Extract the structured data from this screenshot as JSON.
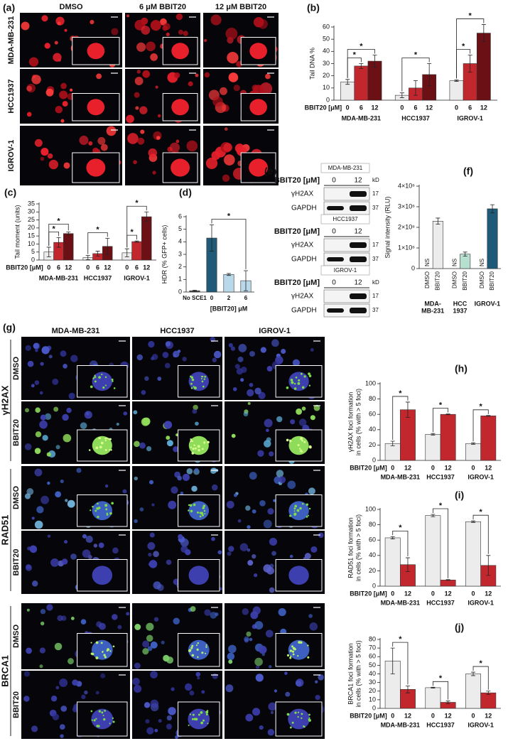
{
  "panel_a": {
    "letter": "(a)",
    "columns": [
      "DMSO",
      "6 μM BBIT20",
      "12 μM BBIT20"
    ],
    "rows": [
      "MDA-MB-231",
      "HCC1937",
      "IGROV-1"
    ]
  },
  "panel_e": {
    "letter": "(e)",
    "blots": [
      {
        "cell_line": "MDA-MB-231",
        "dose_label": "BBIT20 [μM]",
        "doses": [
          "0",
          "12"
        ],
        "unit": "kD",
        "rows": [
          {
            "name": "γH2AX",
            "kd": "17"
          },
          {
            "name": "GAPDH",
            "kd": "37"
          }
        ]
      },
      {
        "cell_line": "HCC1937",
        "dose_label": "BBIT20 [μM]",
        "doses": [
          "0",
          "12"
        ],
        "rows": [
          {
            "name": "γH2AX",
            "kd": "17"
          },
          {
            "name": "GAPDH",
            "kd": "37"
          }
        ]
      },
      {
        "cell_line": "IGROV-1",
        "dose_label": "BBIT20 [μM]",
        "doses": [
          "0",
          "12"
        ],
        "unit": "kD",
        "rows": [
          {
            "name": "γH2AX",
            "kd": "17"
          },
          {
            "name": "GAPDH",
            "kd": "37"
          }
        ]
      }
    ]
  },
  "panel_g": {
    "letter": "(g)",
    "columns": [
      "MDA-MB-231",
      "HCC1937",
      "IGROV-1"
    ],
    "groups": [
      {
        "name": "γH2AX",
        "rows": [
          "DMSO",
          "BBIT20"
        ]
      },
      {
        "name": "RAD51",
        "rows": [
          "DMSO",
          "BBIT20"
        ]
      },
      {
        "name": "BRCA1",
        "rows": [
          "DMSO",
          "BBIT20"
        ]
      }
    ]
  },
  "chart_data": [
    {
      "type": "bar",
      "letter": "(b)",
      "ylabel": "Tail DNA %",
      "xlabel": "BBIT20 [μM]",
      "categories": [
        "MDA-MB-231",
        "HCC1937",
        "IGROV-1"
      ],
      "series": [
        {
          "name": "0",
          "color": "#ececec",
          "values": [
            15,
            4,
            16
          ],
          "errors": [
            2,
            2,
            0.6
          ]
        },
        {
          "name": "6",
          "color": "#c1272d",
          "values": [
            28,
            10,
            30
          ],
          "errors": [
            2,
            6,
            7
          ]
        },
        {
          "name": "12",
          "color": "#6b1116",
          "values": [
            32,
            21,
            55
          ],
          "errors": [
            5,
            9,
            7
          ]
        }
      ],
      "ylim": [
        0,
        60
      ],
      "yticks": [
        0,
        10,
        20,
        30,
        40,
        50,
        60
      ],
      "comparisons": [
        {
          "group": 0,
          "from": 0,
          "to": 1,
          "label": "*"
        },
        {
          "group": 0,
          "from": 0,
          "to": 2,
          "label": "*"
        },
        {
          "group": 1,
          "from": 0,
          "to": 2,
          "label": "*"
        },
        {
          "group": 2,
          "from": 0,
          "to": 1,
          "label": "*"
        },
        {
          "group": 2,
          "from": 0,
          "to": 2,
          "label": "*"
        }
      ]
    },
    {
      "type": "bar",
      "letter": "(c)",
      "ylabel": "Tail moment (units)",
      "xlabel": "BBIT20 [μM]",
      "categories": [
        "MDA-MB-231",
        "HCC1937",
        "IGROV-1"
      ],
      "series": [
        {
          "name": "0",
          "color": "#ececec",
          "values": [
            5,
            1.5,
            4.5
          ],
          "errors": [
            3,
            1.3,
            2.5
          ]
        },
        {
          "name": "6",
          "color": "#c1272d",
          "values": [
            11,
            4,
            11.5
          ],
          "errors": [
            3,
            1.5,
            0.4
          ]
        },
        {
          "name": "12",
          "color": "#6b1116",
          "values": [
            16.5,
            8.5,
            27
          ],
          "errors": [
            1,
            5,
            3
          ]
        }
      ],
      "ylim": [
        0,
        35
      ],
      "yticks": [
        0,
        5,
        10,
        15,
        20,
        25,
        30,
        35
      ],
      "comparisons": [
        {
          "group": 0,
          "from": 0,
          "to": 1,
          "label": "*"
        },
        {
          "group": 0,
          "from": 0,
          "to": 2,
          "label": "*"
        },
        {
          "group": 1,
          "from": 0,
          "to": 2,
          "label": "*"
        },
        {
          "group": 2,
          "from": 0,
          "to": 1,
          "label": "*"
        },
        {
          "group": 2,
          "from": 0,
          "to": 2,
          "label": "*"
        }
      ]
    },
    {
      "type": "bar",
      "letter": "(d)",
      "ylabel": "HDR (% GFP+ cells)",
      "xlabel": "[BBIT20]  μM",
      "categories": [
        "No SCE1",
        "0",
        "2",
        "6"
      ],
      "values": [
        0.1,
        4.3,
        1.4,
        0.9
      ],
      "errors": [
        0.05,
        1.05,
        0.08,
        0.8
      ],
      "colors": [
        "#555555",
        "#1f5b78",
        "#b9d8ea",
        "#b9d8ea"
      ],
      "ylim": [
        0,
        6
      ],
      "yticks": [
        0,
        1,
        2,
        3,
        4,
        5,
        6
      ],
      "comparisons": [
        {
          "from": 1,
          "to": 3,
          "label": "*"
        }
      ]
    },
    {
      "type": "bar",
      "letter": "(f)",
      "ylabel": "Signal intensity (RLU)",
      "categories": [
        [
          "MDA-",
          "MB-231"
        ],
        [
          "HCC",
          "1937"
        ],
        [
          "IGROV-1"
        ]
      ],
      "series": [
        {
          "name": "DMSO",
          "color": "#ececec",
          "values": [
            0,
            0,
            0
          ]
        },
        {
          "name": "BBIT20",
          "colors": [
            "#ececec",
            "#b6dfcf",
            "#1f5b78"
          ],
          "values": [
            2300000,
            700000,
            2900000
          ],
          "errors": [
            150000,
            100000,
            200000
          ]
        }
      ],
      "ylim": [
        0,
        4000000
      ],
      "yticks": [
        0,
        {
          "value": 1000000,
          "label": "1×10⁶"
        },
        {
          "value": 2000000,
          "label": "2×10⁶"
        },
        {
          "value": 3000000,
          "label": "3×10⁶"
        },
        {
          "value": 4000000,
          "label": "4×10⁶"
        }
      ],
      "annotations": [
        {
          "group": 0,
          "series": 0,
          "label": "NS"
        },
        {
          "group": 1,
          "series": 0,
          "label": "NS"
        },
        {
          "group": 2,
          "series": 0,
          "label": "NS"
        }
      ]
    },
    {
      "type": "bar",
      "letter": "(h)",
      "ylabel": [
        "γH2AX foci formation",
        "in cells (% with > 5 foci)"
      ],
      "xlabel": "BBIT20 [μM]",
      "categories": [
        "MDA-MB-231",
        "HCC1937",
        "IGROV-1"
      ],
      "series": [
        {
          "name": "0",
          "color": "#ececec",
          "values": [
            22,
            34,
            22
          ],
          "errors": [
            3,
            1,
            1
          ]
        },
        {
          "name": "12",
          "color": "#c1272d",
          "values": [
            66,
            60,
            58
          ],
          "errors": [
            10,
            0.5,
            0.5
          ]
        }
      ],
      "ylim": [
        0,
        100
      ],
      "yticks": [
        0,
        20,
        40,
        60,
        80,
        100
      ],
      "comparisons": [
        {
          "group": 0,
          "from": 0,
          "to": 1,
          "label": "*"
        },
        {
          "group": 1,
          "from": 0,
          "to": 1,
          "label": "*"
        },
        {
          "group": 2,
          "from": 0,
          "to": 1,
          "label": "*"
        }
      ]
    },
    {
      "type": "bar",
      "letter": "(i)",
      "ylabel": [
        "RAD51 foci formation",
        "in cells (% with > 5 foci)"
      ],
      "xlabel": "BBIT20 [μM]",
      "categories": [
        "MDA-MB-231",
        "HCC1937",
        "IGROV-1"
      ],
      "series": [
        {
          "name": "0",
          "color": "#ececec",
          "values": [
            63,
            92,
            84
          ],
          "errors": [
            1.5,
            1.5,
            1
          ]
        },
        {
          "name": "12",
          "color": "#c1272d",
          "values": [
            28,
            8,
            27
          ],
          "errors": [
            9,
            0.5,
            13
          ]
        }
      ],
      "ylim": [
        0,
        100
      ],
      "yticks": [
        0,
        20,
        40,
        60,
        80,
        100
      ],
      "comparisons": [
        {
          "group": 0,
          "from": 0,
          "to": 1,
          "label": "*"
        },
        {
          "group": 1,
          "from": 0,
          "to": 1,
          "label": "*"
        },
        {
          "group": 2,
          "from": 0,
          "to": 1,
          "label": "*"
        }
      ]
    },
    {
      "type": "bar",
      "letter": "(j)",
      "ylabel": [
        "BRCA1 foci formation",
        "in cells (% with > 5 foci)"
      ],
      "xlabel": "BBIT20 [μM]",
      "categories": [
        "MDA-MB-231",
        "HCC1937",
        "IGROV-1"
      ],
      "series": [
        {
          "name": "0",
          "color": "#ececec",
          "values": [
            55,
            24,
            40
          ],
          "errors": [
            15,
            0.5,
            2
          ]
        },
        {
          "name": "12",
          "color": "#c1272d",
          "values": [
            22,
            7,
            18
          ],
          "errors": [
            4,
            1.5,
            2
          ]
        }
      ],
      "ylim": [
        0,
        80
      ],
      "yticks": [
        0,
        10,
        20,
        30,
        40,
        50,
        60,
        70,
        80
      ],
      "comparisons": [
        {
          "group": 0,
          "from": 0,
          "to": 1,
          "label": "*"
        },
        {
          "group": 1,
          "from": 0,
          "to": 1,
          "label": "*"
        },
        {
          "group": 2,
          "from": 0,
          "to": 1,
          "label": "*"
        }
      ]
    }
  ]
}
